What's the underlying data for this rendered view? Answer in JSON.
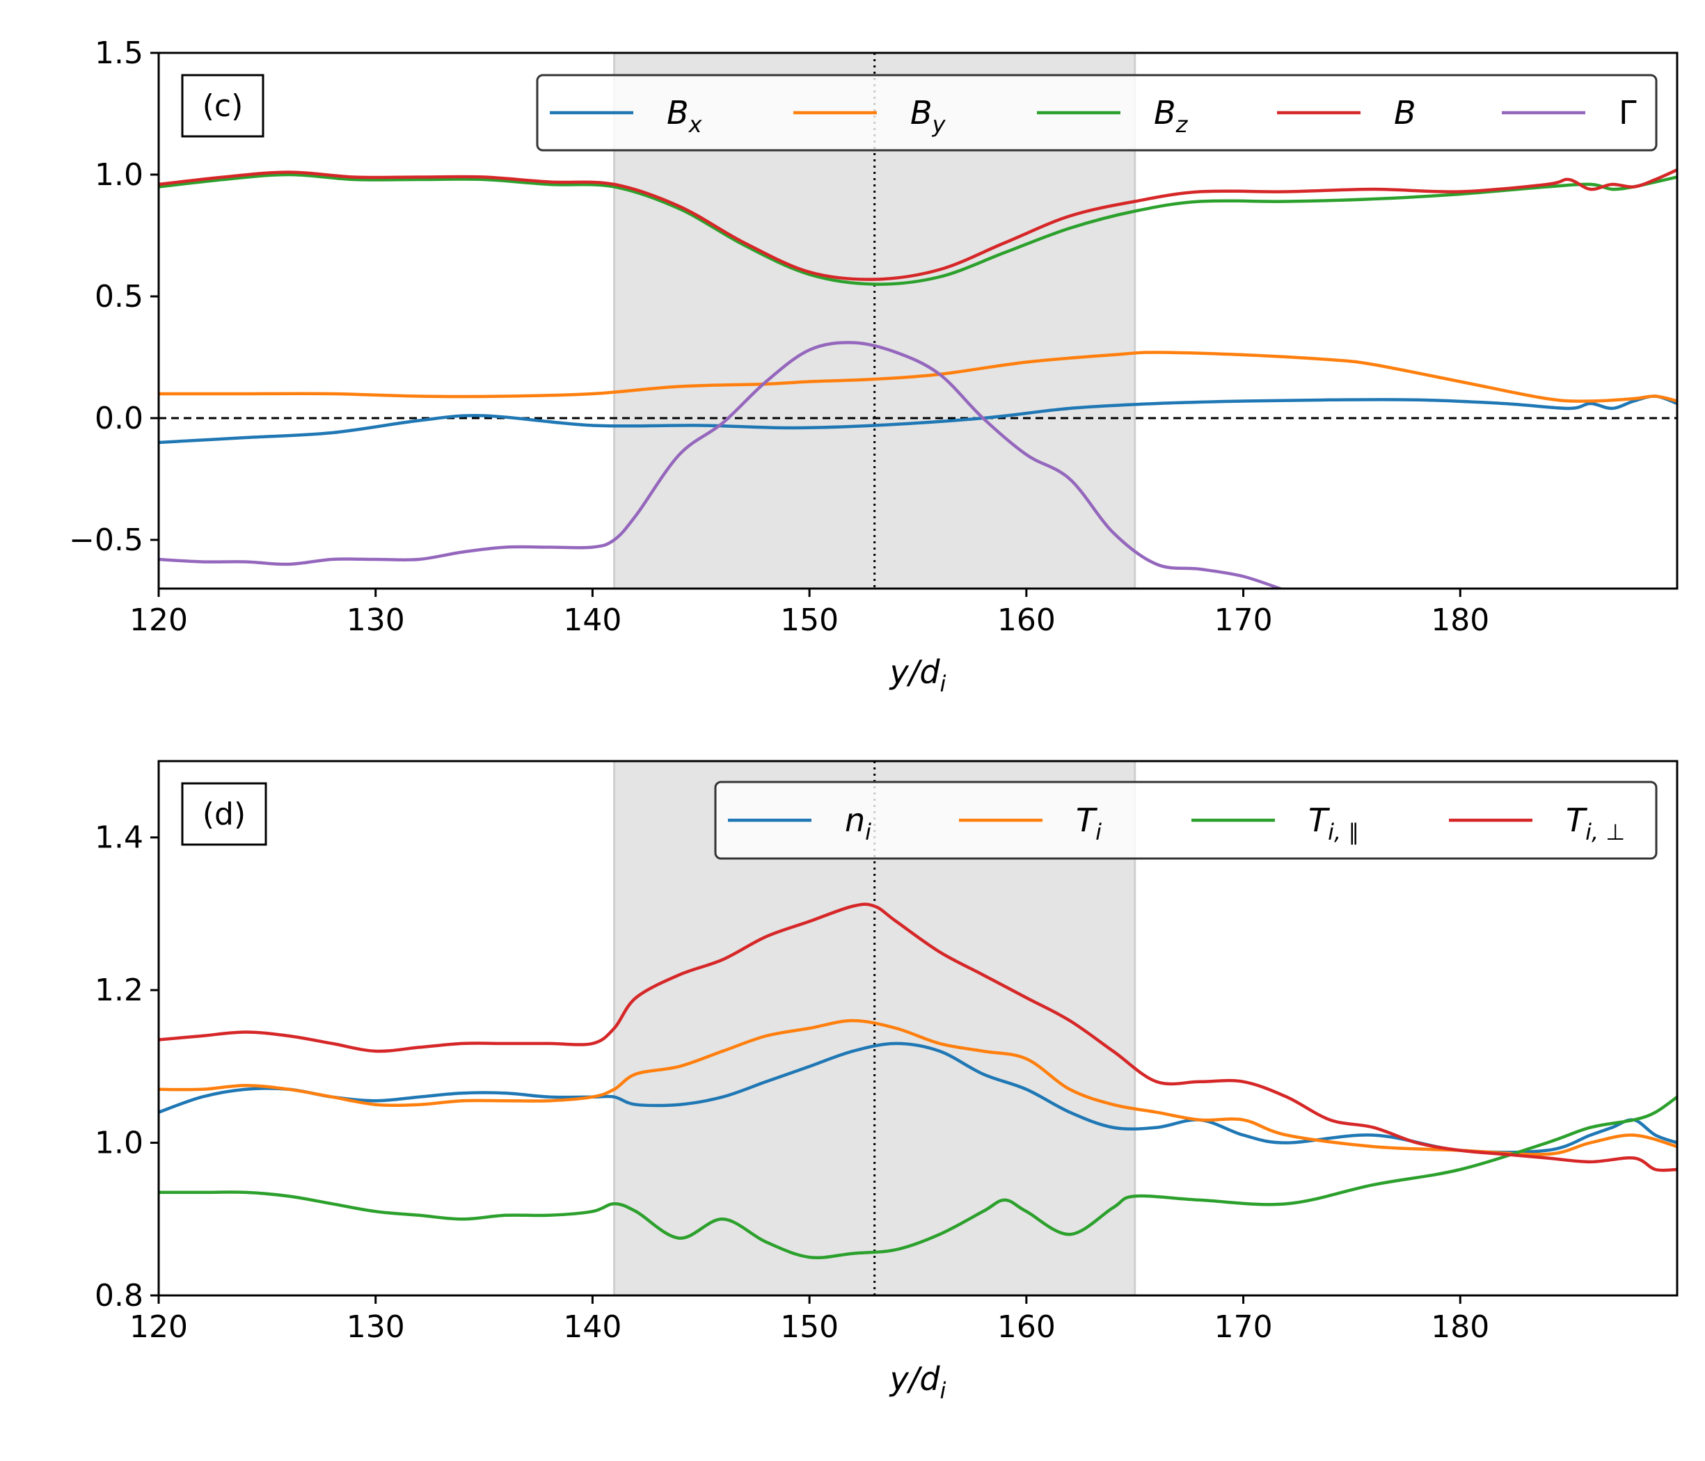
{
  "chart_data": [
    {
      "type": "line",
      "panel_label": "(c)",
      "xlabel": "y/d",
      "xlabel_sub": "i",
      "ylabel": "",
      "xlim": [
        120,
        190
      ],
      "ylim": [
        -0.7,
        1.5
      ],
      "xticks": [
        120,
        130,
        140,
        150,
        160,
        170,
        180
      ],
      "xtick_labels": [
        "120",
        "130",
        "140",
        "150",
        "160",
        "170",
        "180"
      ],
      "yticks": [
        -0.5,
        0.0,
        0.5,
        1.0,
        1.5
      ],
      "ytick_labels": [
        "−0.5",
        "0.0",
        "0.5",
        "1.0",
        "1.5"
      ],
      "shaded_region": [
        141,
        165
      ],
      "vline": 153,
      "hline": 0,
      "legend_position": "top-right",
      "series": [
        {
          "name": "B",
          "sub": "x",
          "color": "#1f77b4",
          "x": [
            120,
            124,
            128,
            132,
            135,
            140,
            145,
            149,
            153,
            158,
            162,
            166,
            170,
            174,
            178,
            182,
            185,
            186,
            187,
            188,
            189,
            190
          ],
          "y": [
            -0.1,
            -0.08,
            -0.06,
            -0.01,
            0.01,
            -0.03,
            -0.03,
            -0.04,
            -0.03,
            0.0,
            0.04,
            0.06,
            0.07,
            0.075,
            0.075,
            0.06,
            0.04,
            0.06,
            0.04,
            0.07,
            0.09,
            0.06
          ]
        },
        {
          "name": "B",
          "sub": "y",
          "color": "#ff7f0e",
          "x": [
            120,
            124,
            128,
            132,
            136,
            140,
            144,
            148,
            150,
            153,
            156,
            160,
            164,
            166,
            170,
            174,
            176,
            180,
            184,
            186,
            188,
            189,
            190
          ],
          "y": [
            0.1,
            0.1,
            0.1,
            0.09,
            0.09,
            0.1,
            0.13,
            0.14,
            0.15,
            0.16,
            0.18,
            0.23,
            0.26,
            0.27,
            0.26,
            0.24,
            0.22,
            0.15,
            0.08,
            0.07,
            0.08,
            0.09,
            0.07
          ]
        },
        {
          "name": "B",
          "sub": "z",
          "color": "#2ca02c",
          "x": [
            120,
            123,
            126,
            129,
            132,
            135,
            138,
            141,
            144,
            147,
            150,
            153,
            156,
            159,
            162,
            165,
            168,
            172,
            176,
            180,
            184,
            186,
            187,
            188,
            189,
            190
          ],
          "y": [
            0.95,
            0.98,
            1.0,
            0.98,
            0.98,
            0.98,
            0.96,
            0.95,
            0.86,
            0.71,
            0.59,
            0.55,
            0.58,
            0.68,
            0.78,
            0.85,
            0.89,
            0.89,
            0.9,
            0.92,
            0.95,
            0.96,
            0.94,
            0.95,
            0.97,
            0.99
          ]
        },
        {
          "name": "B",
          "sub": "",
          "color": "#d62728",
          "x": [
            120,
            123,
            126,
            129,
            132,
            135,
            138,
            141,
            144,
            147,
            150,
            153,
            156,
            159,
            162,
            165,
            168,
            172,
            176,
            180,
            184,
            185,
            186,
            187,
            188,
            189,
            190
          ],
          "y": [
            0.96,
            0.99,
            1.01,
            0.99,
            0.99,
            0.99,
            0.97,
            0.96,
            0.87,
            0.72,
            0.6,
            0.57,
            0.61,
            0.72,
            0.83,
            0.89,
            0.93,
            0.93,
            0.94,
            0.93,
            0.96,
            0.98,
            0.94,
            0.96,
            0.95,
            0.98,
            1.02
          ]
        },
        {
          "name": "Γ",
          "sub": "",
          "color": "#9467bd",
          "x": [
            120,
            122,
            124,
            126,
            128,
            130,
            132,
            134,
            136,
            138,
            140,
            141,
            142,
            144,
            146,
            148,
            150,
            152,
            154,
            156,
            158,
            160,
            162,
            164,
            166,
            168,
            170,
            172
          ],
          "y": [
            -0.58,
            -0.59,
            -0.59,
            -0.6,
            -0.58,
            -0.58,
            -0.58,
            -0.55,
            -0.53,
            -0.53,
            -0.53,
            -0.5,
            -0.4,
            -0.15,
            -0.02,
            0.15,
            0.28,
            0.31,
            0.27,
            0.18,
            0.0,
            -0.15,
            -0.25,
            -0.47,
            -0.6,
            -0.62,
            -0.65,
            -0.71
          ]
        }
      ]
    },
    {
      "type": "line",
      "panel_label": "(d)",
      "xlabel": "y/d",
      "xlabel_sub": "i",
      "ylabel": "",
      "xlim": [
        120,
        190
      ],
      "ylim": [
        0.8,
        1.5
      ],
      "xticks": [
        120,
        130,
        140,
        150,
        160,
        170,
        180
      ],
      "xtick_labels": [
        "120",
        "130",
        "140",
        "150",
        "160",
        "170",
        "180"
      ],
      "yticks": [
        0.8,
        1.0,
        1.2,
        1.4
      ],
      "ytick_labels": [
        "0.8",
        "1.0",
        "1.2",
        "1.4"
      ],
      "shaded_region": [
        141,
        165
      ],
      "vline": 153,
      "legend_position": "top-right",
      "series": [
        {
          "name": "n",
          "sub": "i",
          "color": "#1f77b4",
          "x": [
            120,
            122,
            124,
            126,
            128,
            130,
            132,
            134,
            136,
            138,
            140,
            141,
            142,
            144,
            146,
            148,
            150,
            152,
            154,
            156,
            158,
            160,
            162,
            164,
            166,
            168,
            170,
            172,
            176,
            180,
            184,
            186,
            187,
            188,
            189,
            190
          ],
          "y": [
            1.04,
            1.06,
            1.07,
            1.07,
            1.06,
            1.055,
            1.06,
            1.065,
            1.065,
            1.06,
            1.06,
            1.06,
            1.05,
            1.05,
            1.06,
            1.08,
            1.1,
            1.12,
            1.13,
            1.12,
            1.09,
            1.07,
            1.04,
            1.02,
            1.02,
            1.03,
            1.01,
            1.0,
            1.01,
            0.99,
            0.99,
            1.01,
            1.02,
            1.03,
            1.01,
            1.0
          ]
        },
        {
          "name": "T",
          "sub": "i",
          "color": "#ff7f0e",
          "x": [
            120,
            122,
            124,
            126,
            128,
            130,
            132,
            134,
            136,
            138,
            140,
            141,
            142,
            144,
            146,
            148,
            150,
            152,
            154,
            156,
            158,
            160,
            162,
            164,
            166,
            168,
            170,
            172,
            176,
            180,
            184,
            186,
            188,
            190
          ],
          "y": [
            1.07,
            1.07,
            1.075,
            1.07,
            1.06,
            1.05,
            1.05,
            1.055,
            1.055,
            1.055,
            1.06,
            1.07,
            1.09,
            1.1,
            1.12,
            1.14,
            1.15,
            1.16,
            1.15,
            1.13,
            1.12,
            1.11,
            1.07,
            1.05,
            1.04,
            1.03,
            1.03,
            1.01,
            0.995,
            0.99,
            0.985,
            1.0,
            1.01,
            0.995
          ]
        },
        {
          "name": "T",
          "sub": "i, ∥",
          "color": "#2ca02c",
          "x": [
            120,
            122,
            124,
            126,
            128,
            130,
            132,
            134,
            136,
            138,
            140,
            141,
            142,
            144,
            146,
            148,
            150,
            152,
            154,
            156,
            158,
            159,
            160,
            162,
            164,
            165,
            168,
            172,
            176,
            180,
            184,
            186,
            188,
            189,
            190
          ],
          "y": [
            0.935,
            0.935,
            0.935,
            0.93,
            0.92,
            0.91,
            0.905,
            0.9,
            0.905,
            0.905,
            0.91,
            0.92,
            0.91,
            0.875,
            0.9,
            0.87,
            0.85,
            0.855,
            0.86,
            0.88,
            0.91,
            0.925,
            0.91,
            0.88,
            0.915,
            0.93,
            0.925,
            0.92,
            0.945,
            0.965,
            1.0,
            1.02,
            1.03,
            1.04,
            1.06
          ]
        },
        {
          "name": "T",
          "sub": "i, ⊥",
          "color": "#d62728",
          "x": [
            120,
            122,
            124,
            126,
            128,
            130,
            132,
            134,
            136,
            138,
            140,
            141,
            142,
            144,
            146,
            148,
            150,
            152,
            153,
            154,
            156,
            158,
            160,
            162,
            164,
            166,
            168,
            170,
            172,
            174,
            176,
            178,
            180,
            182,
            184,
            186,
            188,
            189,
            190
          ],
          "y": [
            1.135,
            1.14,
            1.145,
            1.14,
            1.13,
            1.12,
            1.125,
            1.13,
            1.13,
            1.13,
            1.13,
            1.15,
            1.19,
            1.22,
            1.24,
            1.27,
            1.29,
            1.31,
            1.31,
            1.29,
            1.25,
            1.22,
            1.19,
            1.16,
            1.12,
            1.08,
            1.08,
            1.08,
            1.06,
            1.03,
            1.02,
            1.0,
            0.99,
            0.985,
            0.98,
            0.975,
            0.98,
            0.965,
            0.965
          ]
        }
      ]
    }
  ]
}
